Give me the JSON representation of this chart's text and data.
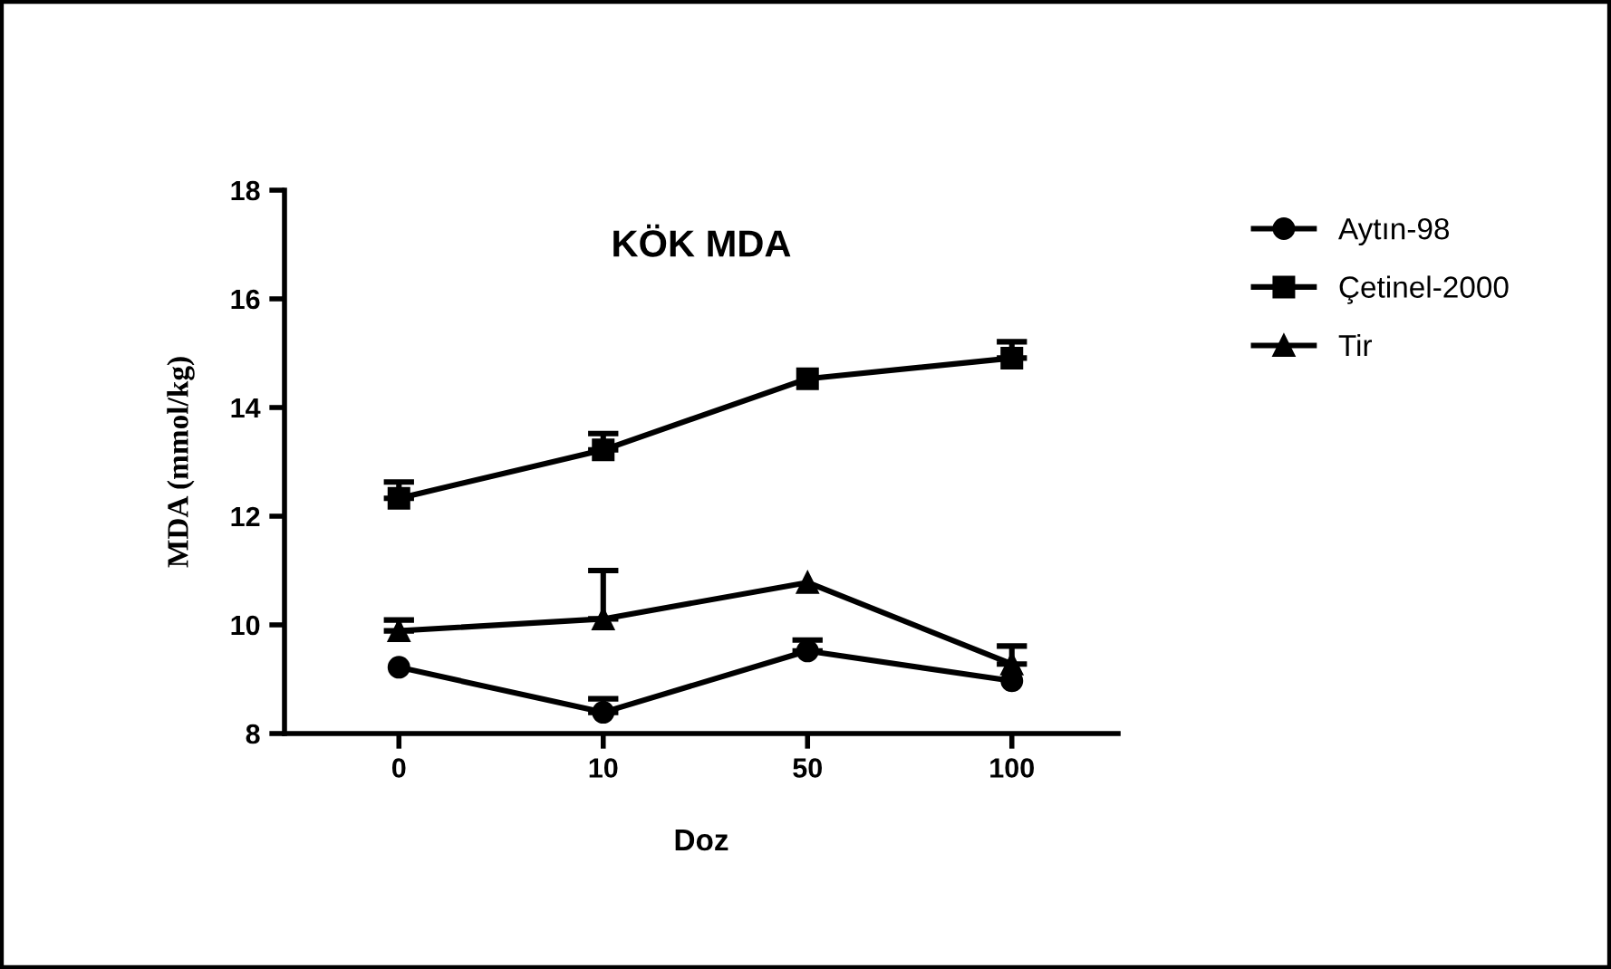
{
  "chart_data": {
    "type": "line",
    "title": "KÖK MDA",
    "xlabel": "Doz",
    "ylabel": "MDA (mmol/kg)",
    "categories": [
      "0",
      "10",
      "50",
      "100"
    ],
    "series": [
      {
        "name": "Aytın-98",
        "color": "#000000",
        "marker": "circle",
        "values": [
          9.22,
          8.39,
          9.52,
          8.97
        ],
        "errors": [
          null,
          [
            8.39,
            8.64
          ],
          [
            9.52,
            9.72
          ],
          null
        ]
      },
      {
        "name": "Çetinel-2000",
        "color": "#000000",
        "marker": "square",
        "values": [
          12.33,
          13.22,
          14.53,
          14.91
        ],
        "errors": [
          [
            12.33,
            12.63
          ],
          [
            13.22,
            13.52
          ],
          null,
          [
            14.91,
            15.21
          ]
        ]
      },
      {
        "name": "Tir",
        "color": "#000000",
        "marker": "triangle",
        "values": [
          9.89,
          10.11,
          10.78,
          9.28
        ],
        "errors": [
          [
            9.89,
            10.09
          ],
          [
            10.11,
            11.0
          ],
          null,
          [
            9.28,
            9.61
          ]
        ]
      }
    ],
    "ylim": [
      8,
      18
    ],
    "yticks": [
      8,
      10,
      12,
      14,
      16,
      18
    ],
    "grid": false,
    "legend": "right",
    "line_style": "solid"
  }
}
